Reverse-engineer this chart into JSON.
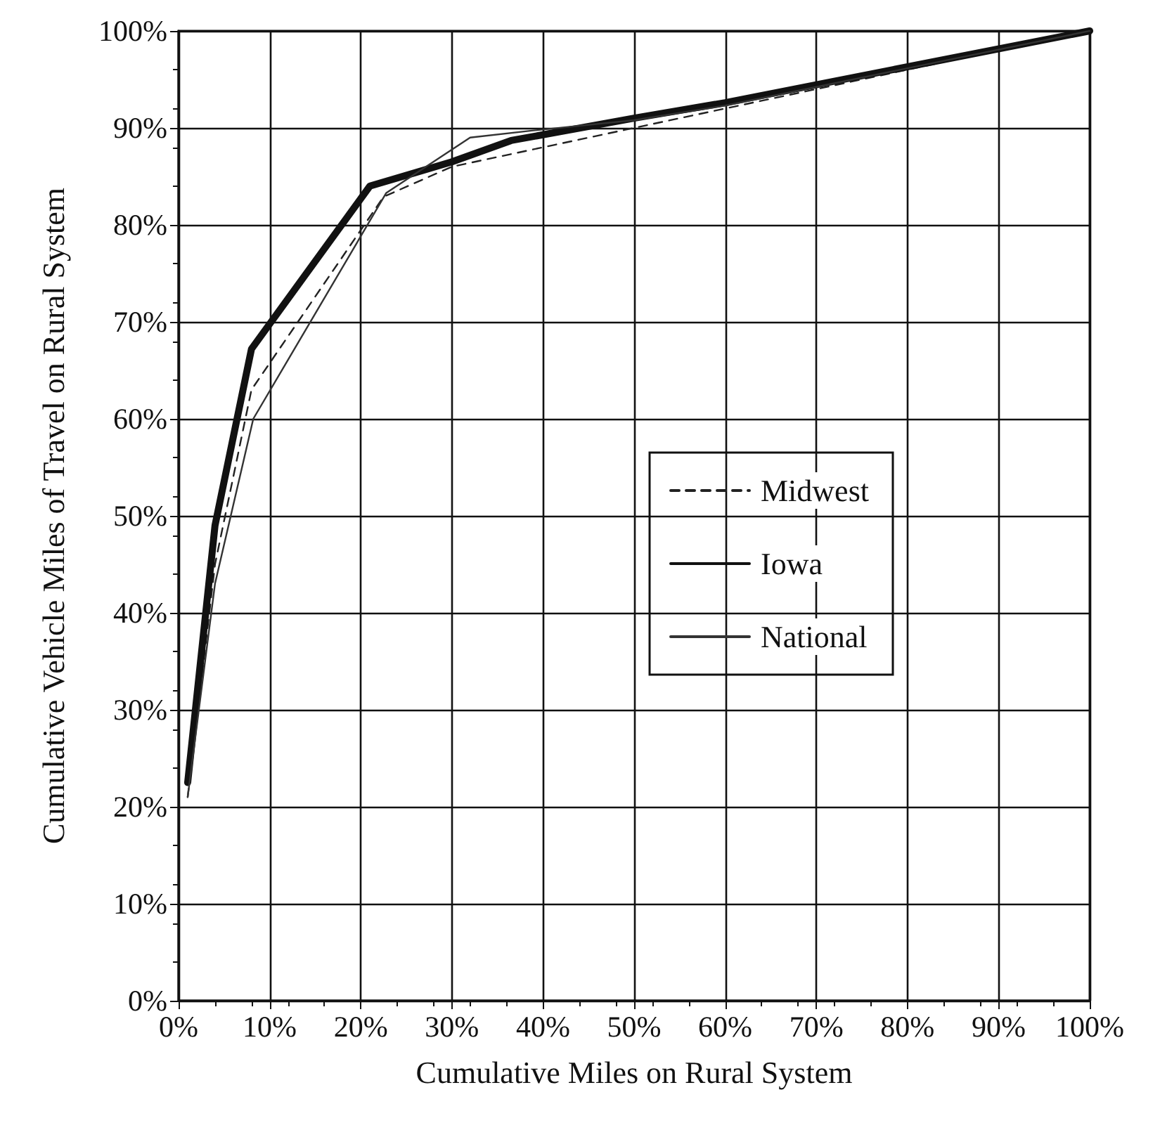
{
  "chart_data": {
    "type": "line",
    "xlabel": "Cumulative Miles on Rural System",
    "ylabel": "Cumulative Vehicle Miles of Travel on Rural System",
    "xlim": [
      0,
      100
    ],
    "xticks": [
      {
        "value": 0,
        "label": "0%"
      },
      {
        "value": 10,
        "label": "10%"
      },
      {
        "value": 20,
        "label": "20%"
      },
      {
        "value": 30,
        "label": "30%"
      },
      {
        "value": 40,
        "label": "40%"
      },
      {
        "value": 50,
        "label": "50%"
      },
      {
        "value": 60,
        "label": "60%"
      },
      {
        "value": 70,
        "label": "70%"
      },
      {
        "value": 80,
        "label": "80%"
      },
      {
        "value": 90,
        "label": "90%"
      },
      {
        "value": 100,
        "label": "100%"
      }
    ],
    "ylim": [
      0,
      100
    ],
    "yticks": [
      {
        "value": 0,
        "label": "0%"
      },
      {
        "value": 10,
        "label": "10%"
      },
      {
        "value": 20,
        "label": "20%"
      },
      {
        "value": 30,
        "label": "30%"
      },
      {
        "value": 40,
        "label": "40%"
      },
      {
        "value": 50,
        "label": "50%"
      },
      {
        "value": 60,
        "label": "60%"
      },
      {
        "value": 70,
        "label": "70%"
      },
      {
        "value": 80,
        "label": "80%"
      },
      {
        "value": 90,
        "label": "90%"
      },
      {
        "value": 100,
        "label": "100%"
      }
    ],
    "grid": true,
    "legend": "right",
    "marker": "none",
    "series": [
      {
        "name": "Midwest",
        "color": "#222222",
        "line_style": "dashed",
        "x": [
          1,
          4,
          8,
          22.5,
          30,
          40,
          50,
          60,
          100
        ],
        "values": [
          21,
          45,
          63,
          82.9,
          86,
          88,
          90,
          92,
          100
        ]
      },
      {
        "name": "Iowa",
        "color": "#111111",
        "line_style": "solid",
        "x": [
          1,
          4,
          8,
          21,
          30,
          36.5,
          50,
          60,
          100
        ],
        "values": [
          22.5,
          49,
          67.2,
          84,
          86.5,
          88.7,
          91,
          92.6,
          100
        ]
      },
      {
        "name": "National",
        "color": "#333333",
        "line_style": "solid",
        "x": [
          1,
          4,
          8.2,
          22.8,
          32,
          38.6,
          50,
          60,
          100
        ],
        "values": [
          21,
          43,
          60,
          83.3,
          89,
          89.7,
          90.8,
          92.3,
          100
        ]
      }
    ]
  }
}
